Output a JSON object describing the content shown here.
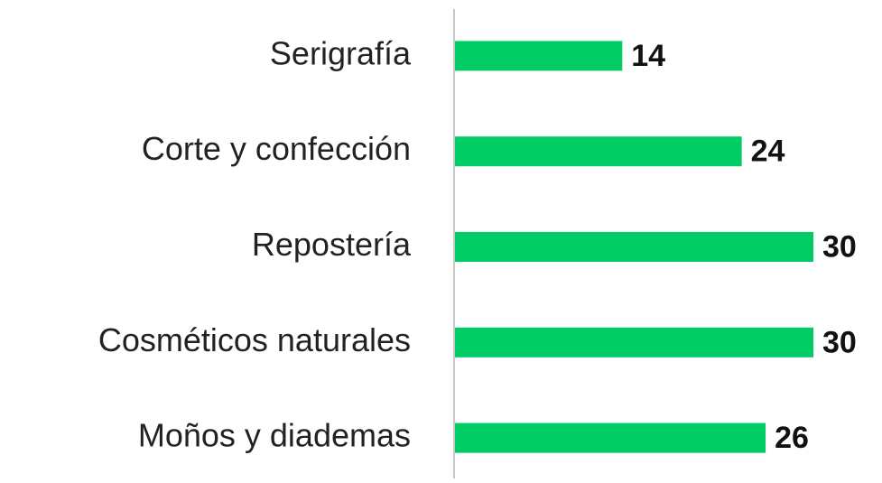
{
  "chart_data": {
    "type": "barh",
    "categories": [
      "Serigrafía",
      "Corte y confección",
      "Repostería",
      "Cosméticos naturales",
      "Moños y diademas"
    ],
    "values": [
      14,
      24,
      30,
      30,
      26
    ],
    "color": "#00cc66",
    "xlim": [
      0,
      30
    ]
  }
}
